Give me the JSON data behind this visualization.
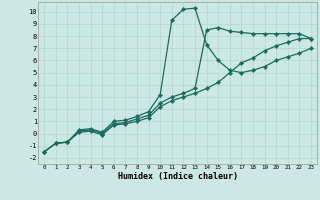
{
  "xlabel": "Humidex (Indice chaleur)",
  "bg_color": "#cce8e4",
  "grid_color": "#b8d8d4",
  "line_color": "#1a6b60",
  "xlim": [
    -0.5,
    23.5
  ],
  "ylim": [
    -2.5,
    10.8
  ],
  "xticks": [
    0,
    1,
    2,
    3,
    4,
    5,
    6,
    7,
    8,
    9,
    10,
    11,
    12,
    13,
    14,
    15,
    16,
    17,
    18,
    19,
    20,
    21,
    22,
    23
  ],
  "yticks": [
    -2,
    -1,
    0,
    1,
    2,
    3,
    4,
    5,
    6,
    7,
    8,
    9,
    10
  ],
  "line1_x": [
    0,
    1,
    2,
    3,
    4,
    5,
    6,
    7,
    8,
    9,
    10,
    11,
    12,
    13,
    14,
    15,
    16,
    17,
    18,
    19,
    20,
    21,
    22,
    23
  ],
  "line1_y": [
    -1.5,
    -0.8,
    -0.7,
    0.3,
    0.4,
    0.1,
    1.0,
    1.1,
    1.4,
    1.8,
    3.2,
    9.3,
    10.2,
    10.3,
    7.3,
    6.0,
    5.2,
    5.0,
    5.2,
    5.5,
    6.0,
    6.3,
    6.6,
    7.0
  ],
  "line2_x": [
    0,
    1,
    2,
    3,
    4,
    5,
    6,
    7,
    8,
    9,
    10,
    11,
    12,
    13,
    14,
    15,
    16,
    17,
    18,
    19,
    20,
    21,
    22,
    23
  ],
  "line2_y": [
    -1.5,
    -0.8,
    -0.7,
    0.2,
    0.3,
    0.0,
    0.8,
    0.9,
    1.2,
    1.5,
    2.5,
    3.0,
    3.3,
    3.7,
    8.5,
    8.7,
    8.4,
    8.3,
    8.2,
    8.2,
    8.2,
    8.2,
    8.2,
    7.8
  ],
  "line3_x": [
    0,
    1,
    2,
    3,
    4,
    5,
    6,
    7,
    8,
    9,
    10,
    11,
    12,
    13,
    14,
    15,
    16,
    17,
    18,
    19,
    20,
    21,
    22,
    23
  ],
  "line3_y": [
    -1.5,
    -0.8,
    -0.7,
    0.1,
    0.2,
    -0.1,
    0.7,
    0.8,
    1.0,
    1.3,
    2.2,
    2.7,
    3.0,
    3.3,
    3.7,
    4.2,
    5.0,
    5.8,
    6.2,
    6.8,
    7.2,
    7.5,
    7.8,
    7.8
  ]
}
